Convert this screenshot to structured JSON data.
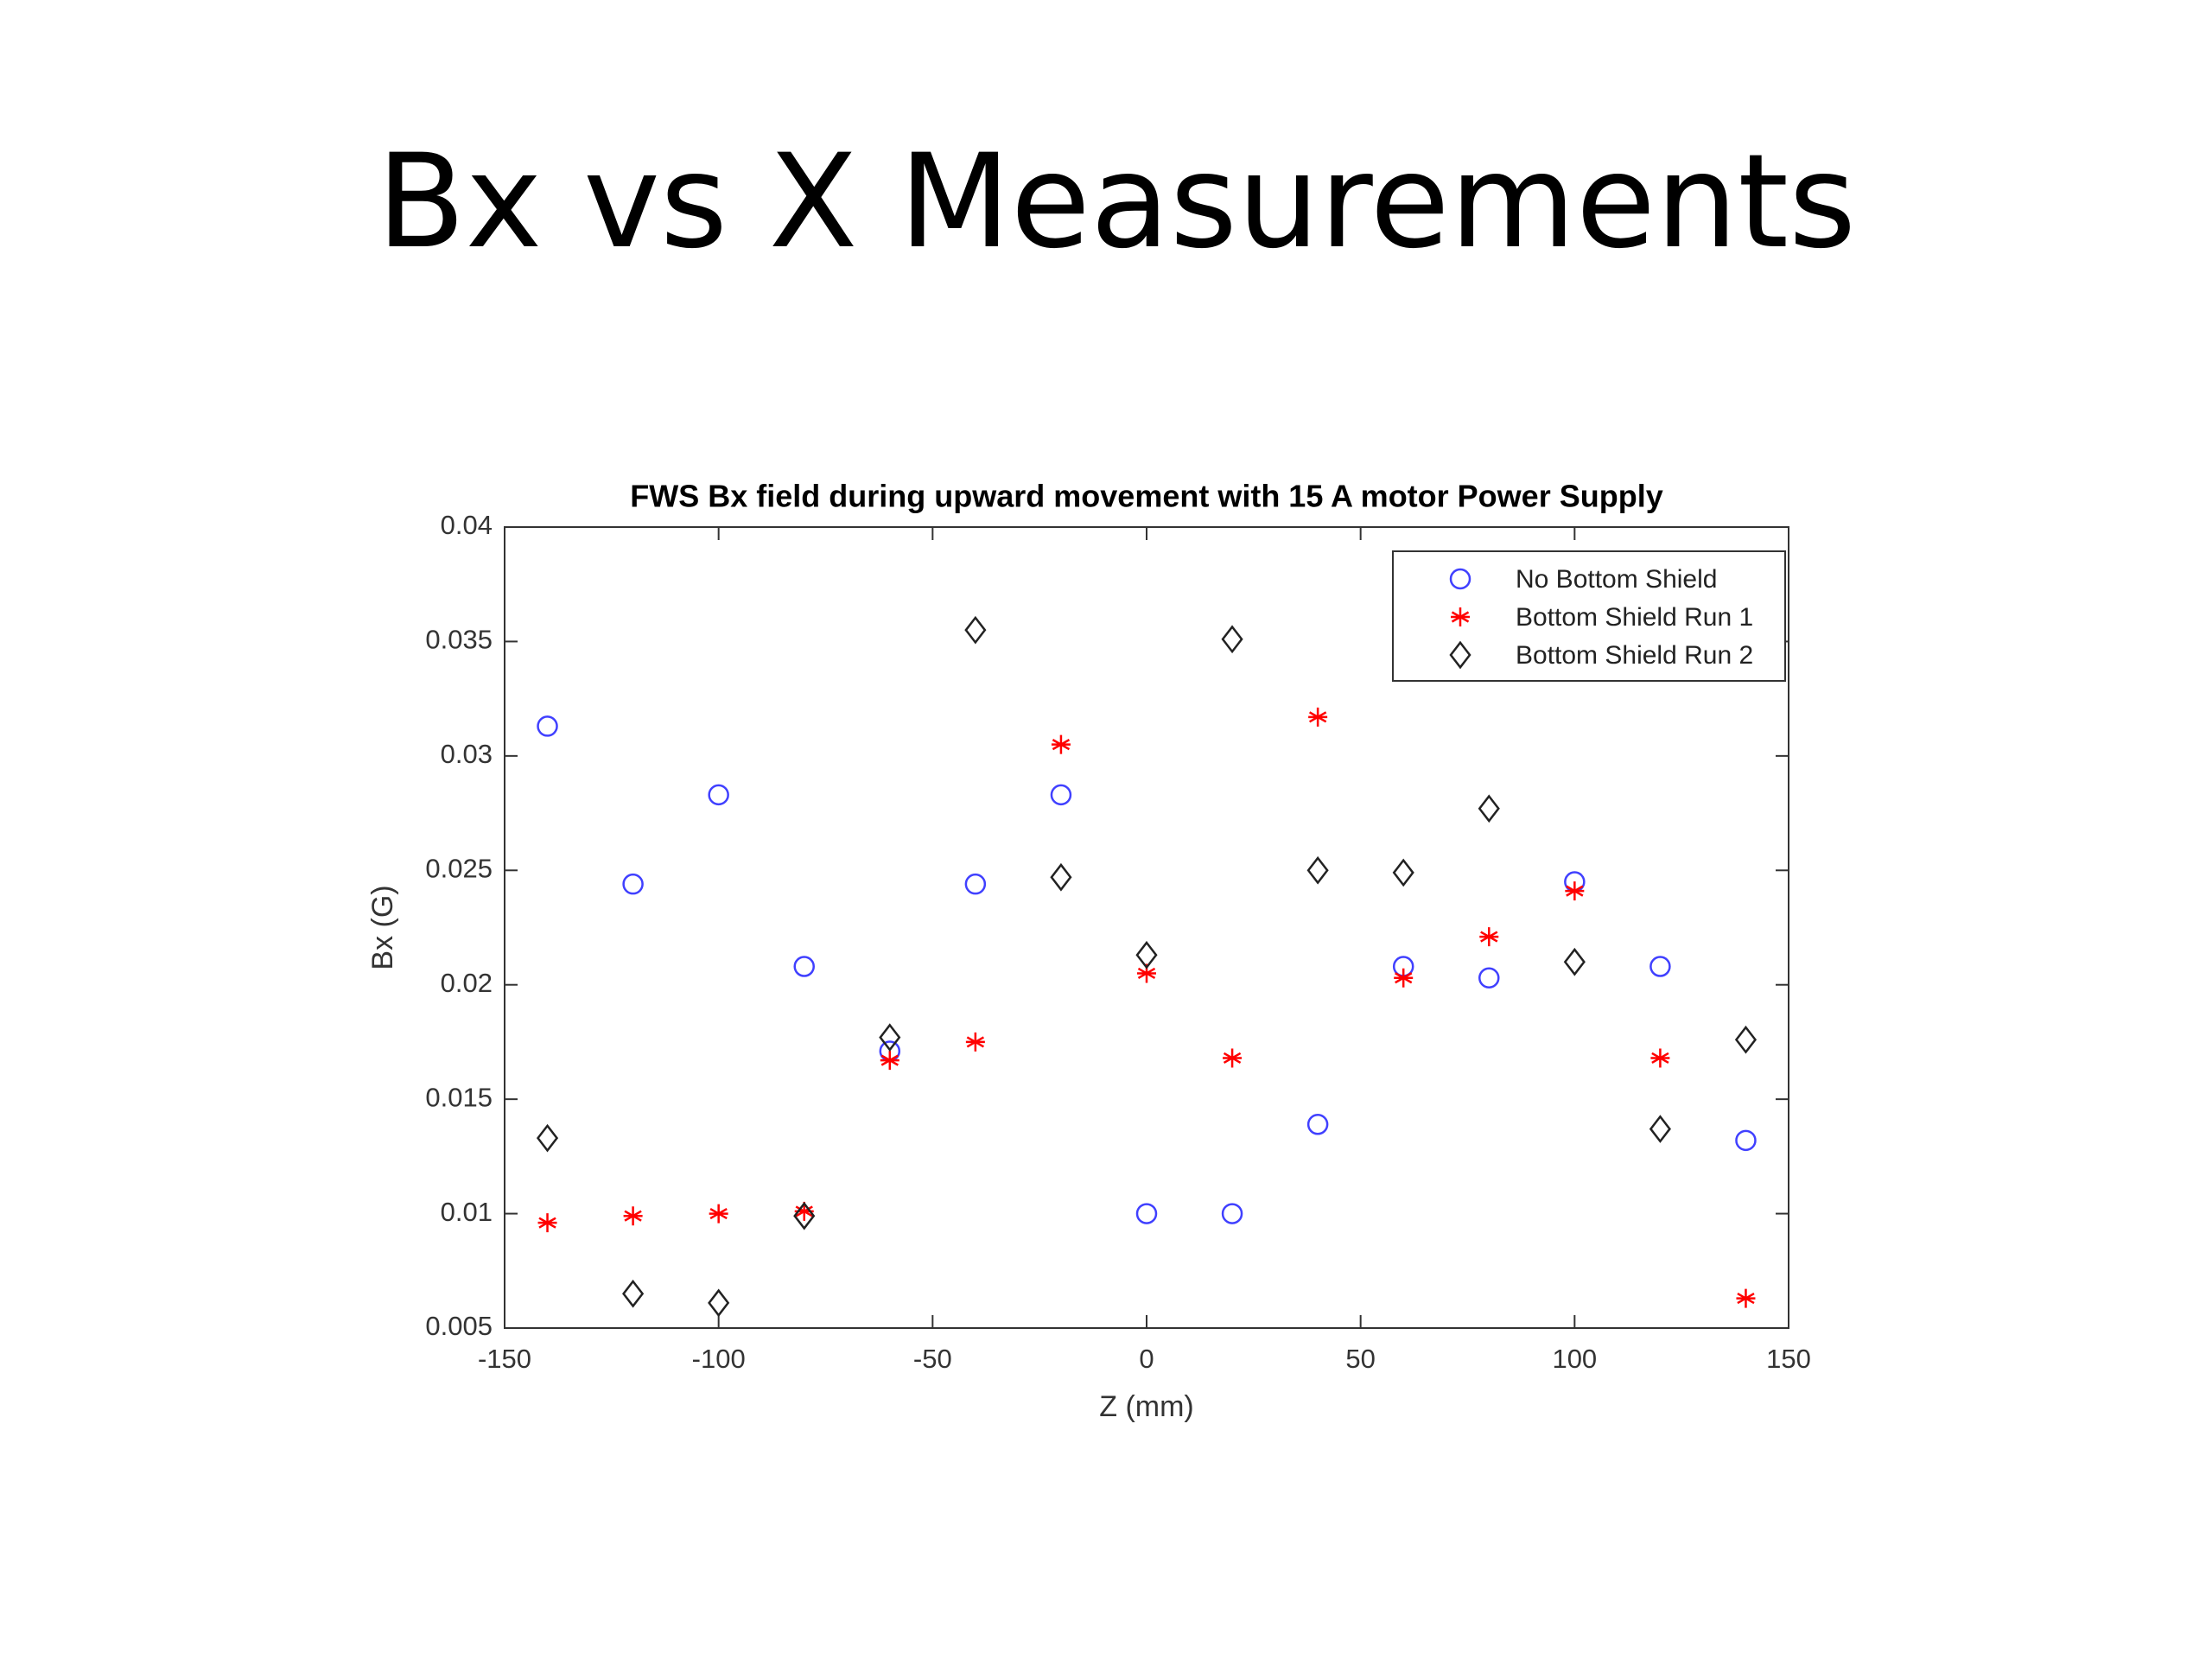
{
  "slide_title": "Bx vs X Measurements",
  "chart_data": {
    "type": "scatter",
    "title": "FWS Bx field during upward movement with 15 A motor Power Supply",
    "x_label": "Z (mm)",
    "y_label": "Bx (G)",
    "x": [
      -140,
      -120,
      -100,
      -80,
      -60,
      -40,
      -20,
      0,
      20,
      40,
      60,
      80,
      100,
      120,
      140
    ],
    "series": [
      {
        "name": "No Bottom Shield",
        "color": "#4040ff",
        "marker": "circle",
        "values": [
          0.0313,
          0.0244,
          0.0283,
          0.0208,
          0.0171,
          0.0244,
          0.0283,
          0.01,
          0.01,
          0.0139,
          0.0208,
          0.0203,
          0.0245,
          0.0208,
          0.0132
        ]
      },
      {
        "name": "Bottom Shield Run 1",
        "color": "#ff0000",
        "marker": "star",
        "values": [
          0.0096,
          0.0099,
          0.01,
          0.0101,
          0.0167,
          0.0175,
          0.0305,
          0.0205,
          0.0168,
          0.0317,
          0.0203,
          0.0221,
          0.0241,
          0.0168,
          0.0063
        ]
      },
      {
        "name": "Bottom Shield Run 2",
        "color": "#222222",
        "marker": "diamond",
        "values": [
          0.0133,
          0.0065,
          0.0061,
          0.0099,
          0.0177,
          0.0355,
          0.0247,
          0.0213,
          0.0351,
          0.025,
          0.0249,
          0.0277,
          0.021,
          0.0137,
          0.0176
        ]
      }
    ],
    "xlim": [
      -150,
      150
    ],
    "xticks": [
      -150,
      -100,
      -50,
      0,
      50,
      100,
      150
    ],
    "ylim": [
      0.005,
      0.04
    ],
    "yticks": [
      0.005,
      0.01,
      0.015,
      0.02,
      0.025,
      0.03,
      0.035,
      0.04
    ],
    "grid": false,
    "legend": "northeast"
  }
}
